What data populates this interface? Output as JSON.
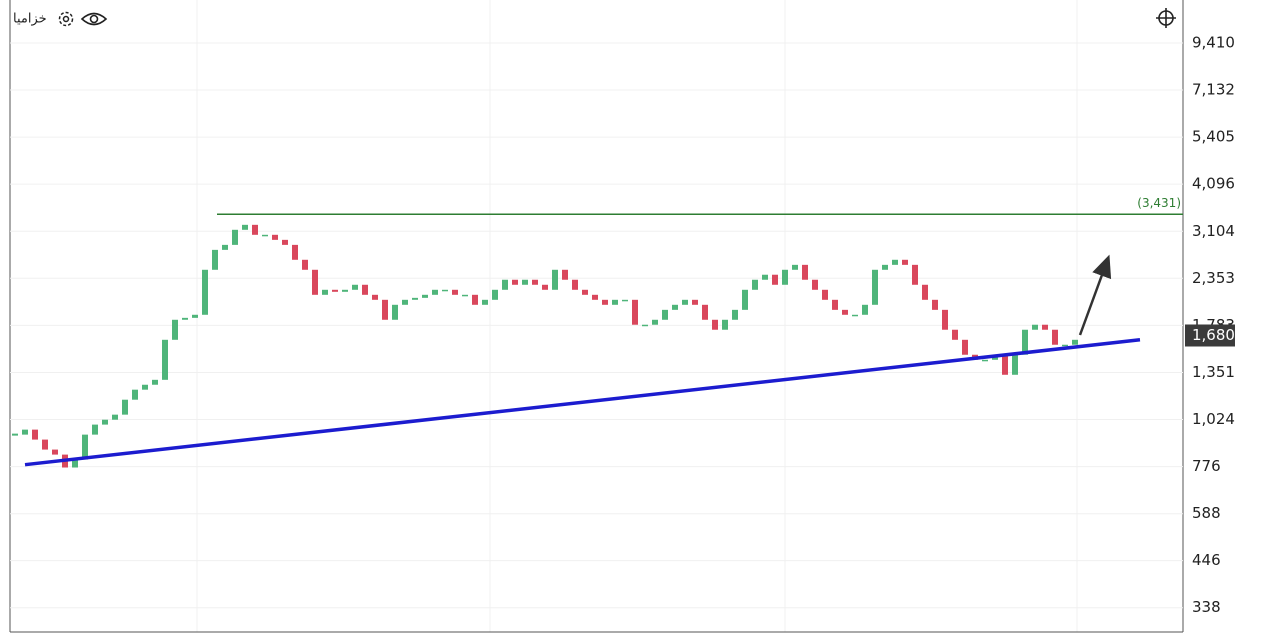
{
  "chart_data": {
    "type": "candlestick",
    "title": "خزامیا",
    "log_scale": true,
    "grid": true,
    "ylim": [
      293,
      12120
    ],
    "yticks": [
      {
        "value": 338,
        "label": "338"
      },
      {
        "value": 446,
        "label": "446"
      },
      {
        "value": 588,
        "label": "588"
      },
      {
        "value": 776,
        "label": "776"
      },
      {
        "value": 1024,
        "label": "1,024"
      },
      {
        "value": 1351,
        "label": "1,351"
      },
      {
        "value": 1783,
        "label": "1,783"
      },
      {
        "value": 2353,
        "label": "2,353"
      },
      {
        "value": 3104,
        "label": "3,104"
      },
      {
        "value": 4096,
        "label": "4,096"
      },
      {
        "value": 5405,
        "label": "5,405"
      },
      {
        "value": 7132,
        "label": "7,132"
      },
      {
        "value": 9410,
        "label": "9,410"
      }
    ],
    "up_color": "#4fb57a",
    "down_color": "#d9475c",
    "values": [
      937,
      965,
      910,
      858,
      833,
      772,
      809,
      937,
      994,
      1023,
      1054,
      1151,
      1221,
      1257,
      1294,
      1638,
      1843,
      1864,
      1898,
      2474,
      2782,
      2865,
      3131,
      3224,
      3040,
      3040,
      2951,
      2865,
      2624,
      2474,
      2135,
      2199,
      2173,
      2199,
      2265,
      2135,
      2073,
      1843,
      2013,
      2073,
      2097,
      2135,
      2199,
      2199,
      2135,
      2135,
      2013,
      2073,
      2199,
      2333,
      2265,
      2333,
      2265,
      2199,
      2474,
      2333,
      2199,
      2135,
      2073,
      2013,
      2073,
      2073,
      1790,
      1790,
      1843,
      1954,
      2013,
      2073,
      2013,
      1843,
      1738,
      1843,
      1954,
      2199,
      2333,
      2403,
      2265,
      2474,
      2547,
      2333,
      2199,
      2073,
      1954,
      1898,
      1898,
      2013,
      2474,
      2547,
      2624,
      2547,
      2265,
      2073,
      1954,
      1738,
      1638,
      1500,
      1456,
      1456,
      1500,
      1333,
      1500,
      1738,
      1790,
      1738,
      1591,
      1591,
      1638
    ],
    "resistance": {
      "value": 3431,
      "label": "(3,431)",
      "color": "#2e7d32"
    },
    "trendline": {
      "start": 785,
      "end": 1638,
      "color": "#1c1ccf"
    },
    "last_price": {
      "value": 1680,
      "label": "1,680"
    }
  }
}
